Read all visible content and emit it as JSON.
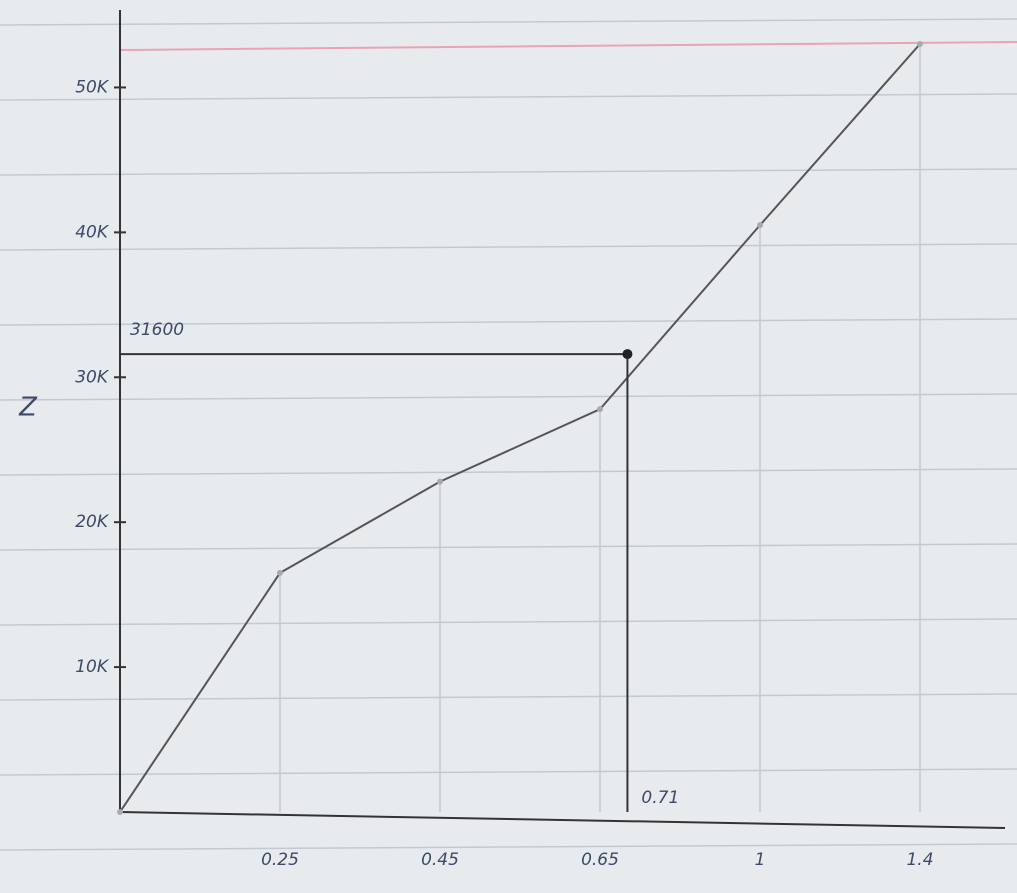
{
  "chart_data": {
    "type": "line",
    "y_label": "Z",
    "categories": [
      null,
      "0.25",
      "0.45",
      "0.65",
      "1",
      "1.4"
    ],
    "values": [
      0,
      16500,
      22800,
      27800,
      40500,
      53000
    ],
    "color": "#555555",
    "ylim": [
      0,
      55000
    ],
    "yticks": [
      {
        "value": 10000,
        "label": "10K"
      },
      {
        "value": 20000,
        "label": "20K"
      },
      {
        "value": 30000,
        "label": "30K"
      },
      {
        "value": 40000,
        "label": "40K"
      },
      {
        "value": 50000,
        "label": "50K"
      }
    ],
    "annotation": {
      "x": 0.71,
      "y": 31600
    }
  }
}
